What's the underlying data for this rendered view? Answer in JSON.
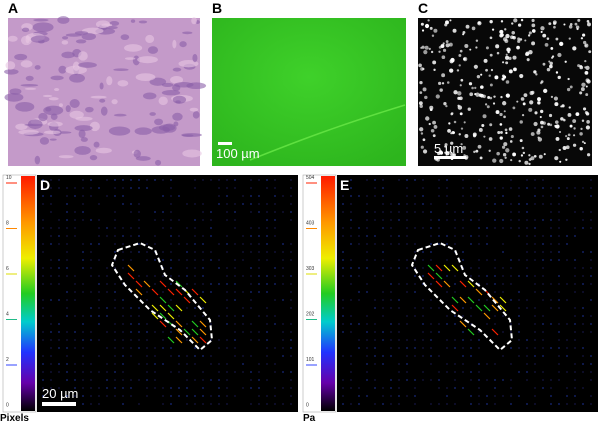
{
  "panels": {
    "A": {
      "label": "A"
    },
    "B": {
      "label": "B",
      "scale_bar": "100 µm"
    },
    "C": {
      "label": "C",
      "scale_bar": "5 µm"
    },
    "D": {
      "label": "D",
      "scale_bar": "20 µm",
      "colorbar": {
        "ticks": [
          "10",
          "8",
          "6",
          "4",
          "2",
          "0"
        ],
        "unit": "Pixels"
      }
    },
    "E": {
      "label": "E",
      "colorbar": {
        "ticks": [
          "504",
          "403",
          "303",
          "202",
          "101",
          "0"
        ],
        "unit": "Pa"
      }
    }
  }
}
